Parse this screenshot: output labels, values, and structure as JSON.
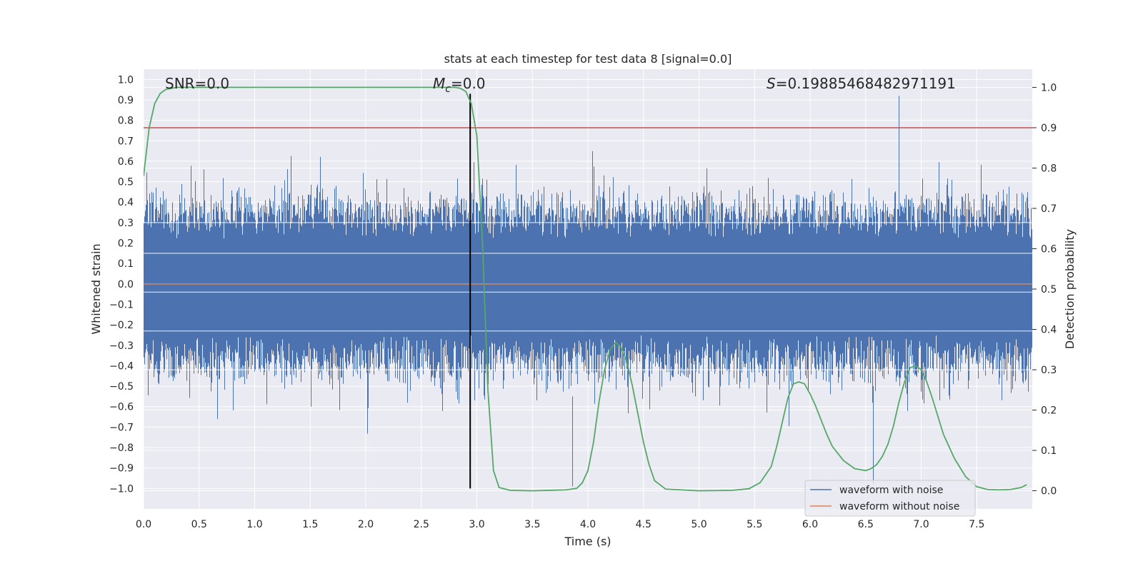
{
  "chart_data": {
    "type": "line",
    "title": "stats at each timestep for test data 8 [signal=0.0]",
    "xlabel": "Time (s)",
    "ylabel": "Whitened strain",
    "y2label": "Detection probability",
    "xlim": [
      0.0,
      8.0
    ],
    "ylim": [
      -1.1,
      1.05
    ],
    "y2lim": [
      -0.045,
      1.045
    ],
    "x_ticks": [
      0.0,
      0.5,
      1.0,
      1.5,
      2.0,
      2.5,
      3.0,
      3.5,
      4.0,
      4.5,
      5.0,
      5.5,
      6.0,
      6.5,
      7.0,
      7.5
    ],
    "x_tick_labels": [
      "0.0",
      "0.5",
      "1.0",
      "1.5",
      "2.0",
      "2.5",
      "3.0",
      "3.5",
      "4.0",
      "4.5",
      "5.0",
      "5.5",
      "6.0",
      "6.5",
      "7.0",
      "7.5"
    ],
    "y_ticks": [
      1.0,
      0.9,
      0.8,
      0.7,
      0.6,
      0.5,
      0.4,
      0.3,
      0.2,
      0.1,
      0.0,
      -0.1,
      -0.2,
      -0.3,
      -0.4,
      -0.5,
      -0.6,
      -0.7,
      -0.8,
      -0.9,
      -1.0
    ],
    "y_tick_labels": [
      "1.0",
      "0.9",
      "0.8",
      "0.7",
      "0.6",
      "0.5",
      "0.4",
      "0.3",
      "0.2",
      "0.1",
      "0.0",
      "−0.1",
      "−0.2",
      "−0.3",
      "−0.4",
      "−0.5",
      "−0.6",
      "−0.7",
      "−0.8",
      "−0.9",
      "−1.0"
    ],
    "y2_ticks": [
      1.0,
      0.9,
      0.8,
      0.7,
      0.6,
      0.5,
      0.4,
      0.3,
      0.2,
      0.1,
      0.0
    ],
    "y2_tick_labels": [
      "1.0",
      "0.9",
      "0.8",
      "0.7",
      "0.6",
      "0.5",
      "0.4",
      "0.3",
      "0.2",
      "0.1",
      "0.0"
    ],
    "annotations": {
      "snr": "SNR=0.0",
      "mc_symbol": "M",
      "mc_subscript": "c",
      "mc_value": "=0.0",
      "s_symbol": "S",
      "s_value": "=0.19885468482971191"
    },
    "threshold_line": {
      "axis": "y2",
      "value": 0.9
    },
    "vertical_marker": {
      "x": 2.94,
      "y_range": [
        -1.0,
        0.93
      ]
    },
    "series": [
      {
        "name": "waveform with noise",
        "color": "#4c72b0",
        "envelope_summary": {
          "typical_upper": 0.4,
          "typical_lower": -0.45,
          "max": 0.92,
          "min": -0.99
        }
      },
      {
        "name": "waveform without noise",
        "color": "#dd8452",
        "constant": 0.0
      },
      {
        "name": "detection probability",
        "axis": "y2",
        "color": "#55a868",
        "x": [
          0.0,
          0.05,
          0.1,
          0.15,
          0.2,
          0.3,
          0.4,
          0.5,
          1.0,
          1.5,
          2.0,
          2.5,
          2.7,
          2.8,
          2.85,
          2.9,
          2.95,
          3.0,
          3.05,
          3.1,
          3.15,
          3.2,
          3.3,
          3.5,
          3.8,
          3.9,
          3.95,
          4.0,
          4.05,
          4.1,
          4.15,
          4.2,
          4.25,
          4.3,
          4.35,
          4.4,
          4.45,
          4.5,
          4.55,
          4.6,
          4.7,
          5.0,
          5.3,
          5.45,
          5.55,
          5.65,
          5.7,
          5.75,
          5.8,
          5.85,
          5.9,
          5.95,
          6.0,
          6.05,
          6.1,
          6.15,
          6.2,
          6.3,
          6.4,
          6.5,
          6.55,
          6.6,
          6.65,
          6.7,
          6.75,
          6.8,
          6.85,
          6.9,
          6.95,
          7.0,
          7.05,
          7.1,
          7.15,
          7.2,
          7.3,
          7.4,
          7.5,
          7.6,
          7.7,
          7.8,
          7.9,
          7.95
        ],
        "values": [
          0.78,
          0.9,
          0.96,
          0.985,
          0.995,
          1.0,
          1.0,
          1.0,
          1.0,
          1.0,
          1.0,
          1.0,
          1.0,
          1.0,
          0.998,
          0.99,
          0.96,
          0.88,
          0.62,
          0.25,
          0.05,
          0.008,
          0.001,
          0.0,
          0.002,
          0.006,
          0.02,
          0.05,
          0.12,
          0.22,
          0.3,
          0.35,
          0.368,
          0.355,
          0.32,
          0.26,
          0.19,
          0.12,
          0.065,
          0.025,
          0.004,
          0.0,
          0.001,
          0.005,
          0.02,
          0.06,
          0.11,
          0.17,
          0.23,
          0.265,
          0.27,
          0.265,
          0.24,
          0.21,
          0.175,
          0.14,
          0.11,
          0.075,
          0.055,
          0.05,
          0.055,
          0.065,
          0.085,
          0.115,
          0.16,
          0.22,
          0.27,
          0.305,
          0.31,
          0.3,
          0.27,
          0.23,
          0.185,
          0.14,
          0.08,
          0.035,
          0.01,
          0.003,
          0.002,
          0.003,
          0.008,
          0.015
        ]
      }
    ],
    "legend_placement": "bottom-right"
  }
}
